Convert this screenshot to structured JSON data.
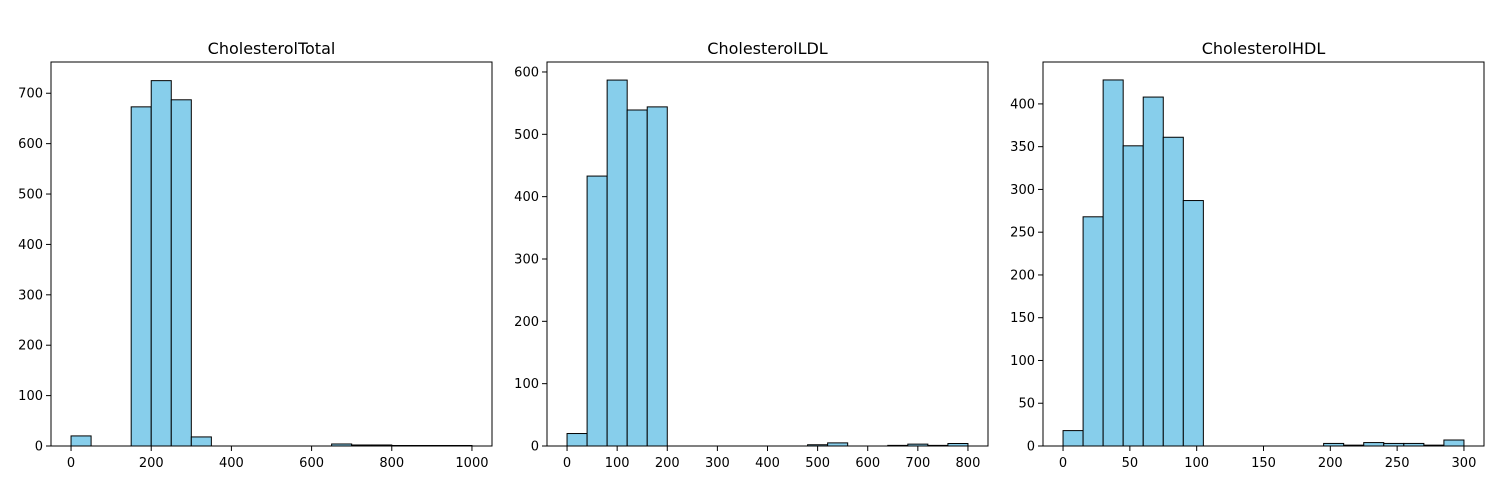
{
  "chart_data": [
    {
      "type": "bar",
      "title": "CholesterolTotal",
      "xlabel": "",
      "ylabel": "",
      "bin_start": 0,
      "bin_width": 50,
      "values": [
        20,
        0,
        0,
        673,
        725,
        687,
        18,
        0,
        0,
        0,
        0,
        0,
        0,
        4,
        2,
        2,
        1,
        1,
        1,
        1
      ],
      "xlim": [
        -50,
        1050
      ],
      "ylim": [
        0,
        762
      ],
      "xticks": [
        0,
        200,
        400,
        600,
        800,
        1000
      ],
      "yticks": [
        0,
        100,
        200,
        300,
        400,
        500,
        600,
        700
      ],
      "grid": false,
      "bar_color": "#87CEEB",
      "edge_color": "#000000"
    },
    {
      "type": "bar",
      "title": "CholesterolLDL",
      "xlabel": "",
      "ylabel": "",
      "bin_start": 0,
      "bin_width": 40,
      "values": [
        20,
        433,
        587,
        539,
        544,
        0,
        0,
        0,
        0,
        0,
        0,
        0,
        2,
        5,
        0,
        0,
        1,
        3,
        1,
        4
      ],
      "xlim": [
        -40,
        840
      ],
      "ylim": [
        0,
        616
      ],
      "xticks": [
        0,
        100,
        200,
        300,
        400,
        500,
        600,
        700,
        800
      ],
      "yticks": [
        0,
        100,
        200,
        300,
        400,
        500,
        600
      ],
      "grid": false,
      "bar_color": "#87CEEB",
      "edge_color": "#000000"
    },
    {
      "type": "bar",
      "title": "CholesterolHDL",
      "xlabel": "",
      "ylabel": "",
      "bin_start": 0,
      "bin_width": 15,
      "values": [
        18,
        268,
        428,
        351,
        408,
        361,
        287,
        0,
        0,
        0,
        0,
        0,
        0,
        3,
        1,
        4,
        3,
        3,
        1,
        7
      ],
      "xlim": [
        -15,
        315
      ],
      "ylim": [
        0,
        449
      ],
      "xticks": [
        0,
        50,
        100,
        150,
        200,
        250,
        300
      ],
      "yticks": [
        0,
        50,
        100,
        150,
        200,
        250,
        300,
        350,
        400
      ],
      "grid": false,
      "bar_color": "#87CEEB",
      "edge_color": "#000000"
    }
  ]
}
